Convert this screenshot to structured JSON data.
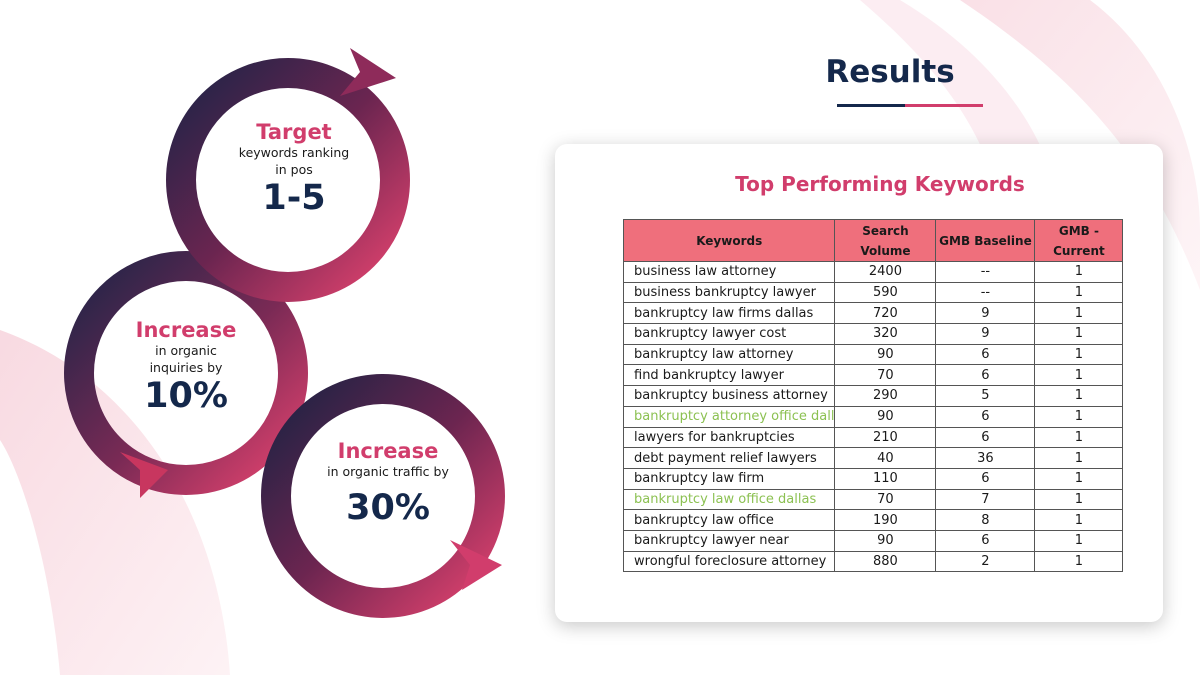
{
  "results": {
    "title": "Results"
  },
  "stats": [
    {
      "heading": "Target",
      "line1": "keywords ranking",
      "line2": "in pos",
      "value": "1-5"
    },
    {
      "heading": "Increase",
      "line1": "in organic",
      "line2": "inquiries by",
      "value": "10%"
    },
    {
      "heading": "Increase",
      "line1": "in organic traffic by",
      "line2": "",
      "value": "30%"
    }
  ],
  "card": {
    "title": "Top Performing Keywords",
    "headers": {
      "keywords": "Keywords",
      "volume_1": "Search",
      "volume_2": "Volume",
      "baseline": "GMB Baseline",
      "current_1": "GMB -",
      "current_2": "Current"
    },
    "rows": [
      {
        "keyword": "business law attorney",
        "volume": "2400",
        "baseline": "--",
        "current": "1",
        "green": false
      },
      {
        "keyword": "business bankruptcy lawyer",
        "volume": "590",
        "baseline": "--",
        "current": "1",
        "green": false
      },
      {
        "keyword": "bankruptcy law firms dallas",
        "volume": "720",
        "baseline": "9",
        "current": "1",
        "green": false
      },
      {
        "keyword": "bankruptcy lawyer cost",
        "volume": "320",
        "baseline": "9",
        "current": "1",
        "green": false
      },
      {
        "keyword": "bankruptcy law attorney",
        "volume": "90",
        "baseline": "6",
        "current": "1",
        "green": false
      },
      {
        "keyword": "find bankruptcy lawyer",
        "volume": "70",
        "baseline": "6",
        "current": "1",
        "green": false
      },
      {
        "keyword": "bankruptcy business attorney",
        "volume": "290",
        "baseline": "5",
        "current": "1",
        "green": false
      },
      {
        "keyword": "bankruptcy attorney office dall",
        "volume": "90",
        "baseline": "6",
        "current": "1",
        "green": true
      },
      {
        "keyword": "lawyers for bankruptcies",
        "volume": "210",
        "baseline": "6",
        "current": "1",
        "green": false
      },
      {
        "keyword": "debt payment relief lawyers",
        "volume": "40",
        "baseline": "36",
        "current": "1",
        "green": false
      },
      {
        "keyword": "bankruptcy law firm",
        "volume": "110",
        "baseline": "6",
        "current": "1",
        "green": false
      },
      {
        "keyword": "bankruptcy law office dallas",
        "volume": "70",
        "baseline": "7",
        "current": "1",
        "green": true
      },
      {
        "keyword": "bankruptcy law office",
        "volume": "190",
        "baseline": "8",
        "current": "1",
        "green": false
      },
      {
        "keyword": "bankruptcy lawyer near",
        "volume": "90",
        "baseline": "6",
        "current": "1",
        "green": false
      },
      {
        "keyword": "wrongful foreclosure attorney",
        "volume": "880",
        "baseline": "2",
        "current": "1",
        "green": false
      }
    ]
  },
  "colors": {
    "navy": "#14284b",
    "pink": "#d13d6c",
    "header_fill": "#ef6f7c",
    "green_text": "#8cc152"
  }
}
